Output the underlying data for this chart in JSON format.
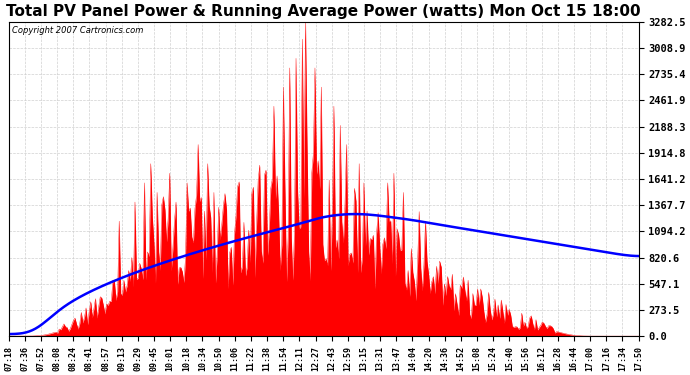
{
  "title": "Total PV Panel Power & Running Average Power (watts) Mon Oct 15 18:00",
  "copyright": "Copyright 2007 Cartronics.com",
  "yticks": [
    0.0,
    273.5,
    547.1,
    820.6,
    1094.2,
    1367.7,
    1641.2,
    1914.8,
    2188.3,
    2461.9,
    2735.4,
    3008.9,
    3282.5
  ],
  "ymax": 3282.5,
  "background_color": "#ffffff",
  "plot_bg_color": "#ffffff",
  "grid_color": "#aaaaaa",
  "fill_color": "#ff0000",
  "avg_color": "#0000ff",
  "title_fontsize": 11,
  "xtick_labels": [
    "07:18",
    "07:36",
    "07:52",
    "08:08",
    "08:24",
    "08:41",
    "08:57",
    "09:13",
    "09:29",
    "09:45",
    "10:01",
    "10:18",
    "10:34",
    "10:50",
    "11:06",
    "11:22",
    "11:38",
    "11:54",
    "12:11",
    "12:27",
    "12:43",
    "12:59",
    "13:15",
    "13:31",
    "13:47",
    "14:04",
    "14:20",
    "14:36",
    "14:52",
    "15:08",
    "15:24",
    "15:40",
    "15:56",
    "16:12",
    "16:28",
    "16:44",
    "17:00",
    "17:16",
    "17:34",
    "17:50"
  ]
}
